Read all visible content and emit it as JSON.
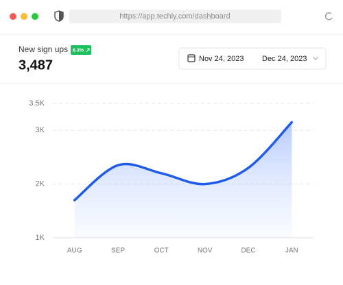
{
  "browser": {
    "url": "https://app.techly.com/dashboard"
  },
  "header": {
    "label": "New sign ups",
    "value": "3,487",
    "badge": "6.3%"
  },
  "date_range": {
    "start": "Nov 24, 2023",
    "end": "Dec 24, 2023"
  },
  "chart_data": {
    "type": "line",
    "categories": [
      "AUG",
      "SEP",
      "OCT",
      "NOV",
      "DEC",
      "JAN"
    ],
    "series": [
      {
        "color": "#1f5bea",
        "values": [
          1700,
          2350,
          2200,
          2000,
          2300,
          3150
        ]
      }
    ],
    "ylim": [
      1000,
      3500
    ],
    "yticks": [
      {
        "value": 1000,
        "label": "1K"
      },
      {
        "value": 2000,
        "label": "2K"
      },
      {
        "value": 3000,
        "label": "3K"
      },
      {
        "value": 3500,
        "label": "3.5K"
      }
    ],
    "grid": true
  }
}
